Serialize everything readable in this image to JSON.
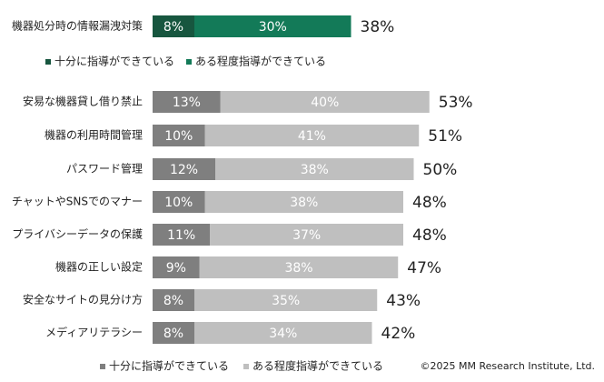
{
  "chart_data": [
    {
      "type": "stacked-bar",
      "categories": [
        "機器処分時の情報漏洩対策"
      ],
      "series": [
        {
          "name": "十分に指導ができている",
          "color": "#17563f",
          "values": [
            8
          ],
          "value_labels": [
            "8%"
          ]
        },
        {
          "name": "ある程度指導ができている",
          "color": "#137a58",
          "values": [
            30
          ],
          "value_labels": [
            "30%"
          ]
        }
      ],
      "totals": {
        "values": [
          38
        ],
        "value_labels": [
          "38%"
        ]
      }
    },
    {
      "type": "stacked-bar",
      "categories": [
        "安易な機器貸し借り禁止",
        "機器の利用時間管理",
        "パスワード管理",
        "チャットやSNSでのマナー",
        "プライバシーデータの保護",
        "機器の正しい設定",
        "安全なサイトの見分け方",
        "メディアリテラシー"
      ],
      "series": [
        {
          "name": "十分に指導ができている",
          "color": "#7f7f7f",
          "values": [
            13,
            10,
            12,
            10,
            11,
            9,
            8,
            8
          ],
          "value_labels": [
            "13%",
            "10%",
            "12%",
            "10%",
            "11%",
            "9%",
            "8%",
            "8%"
          ]
        },
        {
          "name": "ある程度指導ができている",
          "color": "#bfbfbf",
          "values": [
            40,
            41,
            38,
            38,
            37,
            38,
            35,
            34
          ],
          "value_labels": [
            "40%",
            "41%",
            "38%",
            "38%",
            "37%",
            "38%",
            "35%",
            "34%"
          ]
        }
      ],
      "totals": {
        "values": [
          53,
          51,
          50,
          48,
          48,
          47,
          43,
          42
        ],
        "value_labels": [
          "53%",
          "51%",
          "50%",
          "48%",
          "48%",
          "47%",
          "43%",
          "42%"
        ]
      }
    }
  ],
  "footnote": "©2025  MM Research Institute, Ltd."
}
